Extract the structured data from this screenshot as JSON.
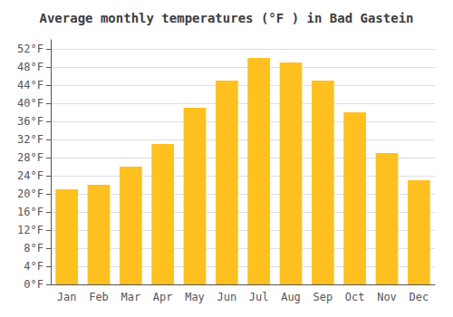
{
  "chart_data": {
    "type": "bar",
    "title": "Average monthly temperatures (°F ) in Bad Gastein",
    "categories": [
      "Jan",
      "Feb",
      "Mar",
      "Apr",
      "May",
      "Jun",
      "Jul",
      "Aug",
      "Sep",
      "Oct",
      "Nov",
      "Dec"
    ],
    "values": [
      21,
      22,
      26,
      31,
      39,
      45,
      50,
      49,
      45,
      38,
      29,
      23
    ],
    "color": "#FFC020",
    "ylim": [
      0,
      54
    ],
    "yticks": [
      {
        "value": 0,
        "label": "0°F"
      },
      {
        "value": 4,
        "label": "4°F"
      },
      {
        "value": 8,
        "label": "8°F"
      },
      {
        "value": 12,
        "label": "12°F"
      },
      {
        "value": 16,
        "label": "16°F"
      },
      {
        "value": 20,
        "label": "20°F"
      },
      {
        "value": 24,
        "label": "24°F"
      },
      {
        "value": 28,
        "label": "28°F"
      },
      {
        "value": 32,
        "label": "32°F"
      },
      {
        "value": 36,
        "label": "36°F"
      },
      {
        "value": 40,
        "label": "40°F"
      },
      {
        "value": 44,
        "label": "44°F"
      },
      {
        "value": 48,
        "label": "48°F"
      },
      {
        "value": 52,
        "label": "52°F"
      }
    ],
    "grid": true
  }
}
